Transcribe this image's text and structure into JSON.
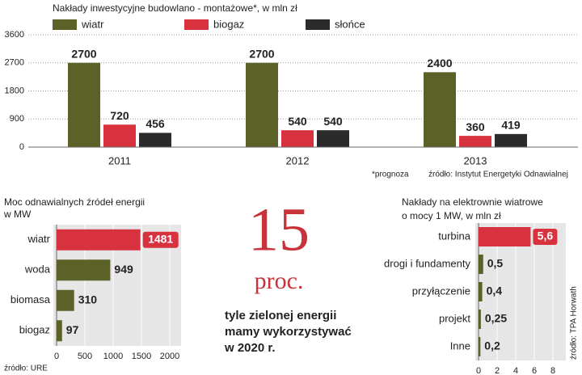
{
  "chart_data": [
    {
      "type": "grouped-bar",
      "title": "Nakłady inwestycyjne budowlano - montażowe*, w mln zł",
      "categories": [
        "2011",
        "2012",
        "2013"
      ],
      "series": [
        {
          "name": "wiatr",
          "color": "#5c6128",
          "values": [
            2700,
            2700,
            2400
          ]
        },
        {
          "name": "biogaz",
          "color": "#d8323e",
          "values": [
            720,
            540,
            360
          ]
        },
        {
          "name": "słońce",
          "color": "#2b2b2b",
          "values": [
            456,
            540,
            419
          ]
        }
      ],
      "ylim": [
        0,
        3600
      ],
      "yticks": [
        0,
        900,
        1800,
        2700,
        3600
      ],
      "grid": true,
      "notes": [
        "*prognoza",
        "źródło: Instytut Energetyki Odnawialnej"
      ]
    },
    {
      "type": "hbar",
      "title": [
        "Moc odnawialnych źródeł energii",
        "w MW"
      ],
      "categories": [
        "wiatr",
        "woda",
        "biomasa",
        "biogaz"
      ],
      "values": [
        1481,
        949,
        310,
        97
      ],
      "colors": [
        "#d8323e",
        "#5c6128",
        "#5c6128",
        "#5c6128"
      ],
      "xlim": [
        0,
        2000
      ],
      "xticks": [
        0,
        500,
        1000,
        1500,
        2000
      ],
      "source": "źródło: URE"
    },
    {
      "type": "hbar",
      "title": [
        "Nakłady na elektrownie wiatrowe",
        "o mocy 1 MW,  w mln zł"
      ],
      "categories": [
        "turbina",
        "drogi i fundamenty",
        "przyłączenie",
        "projekt",
        "Inne"
      ],
      "values": [
        5.6,
        0.5,
        0.4,
        0.25,
        0.2
      ],
      "value_labels": [
        "5,6",
        "0,5",
        "0,4",
        "0,25",
        "0,2"
      ],
      "colors": [
        "#d8323e",
        "#5c6128",
        "#5c6128",
        "#5c6128",
        "#5c6128"
      ],
      "xlim": [
        0,
        8
      ],
      "xticks": [
        0,
        2,
        4,
        6,
        8
      ],
      "source": "źródło: TPA Horwath"
    }
  ],
  "callout": {
    "number": "15",
    "unit": "proc.",
    "lines": [
      "tyle zielonej energii",
      "mamy wykorzystywać",
      "w 2020 r."
    ]
  }
}
